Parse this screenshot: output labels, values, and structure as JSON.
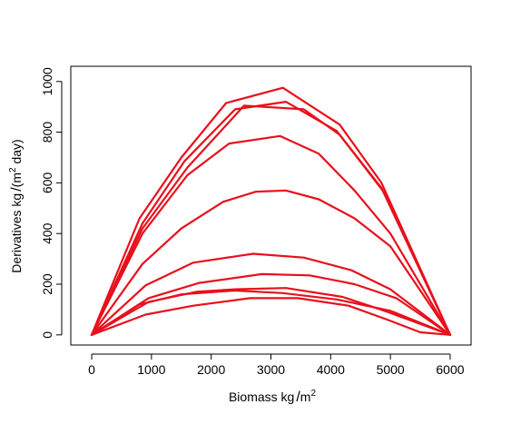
{
  "chart_data": {
    "type": "line",
    "title": "",
    "xlabel": "Biomass kg/m²",
    "xlabel_parts": {
      "main": "Biomass kg",
      "slash": "/",
      "base": "m",
      "sup": "2"
    },
    "ylabel": "Derivatives kg/(m² day)",
    "ylabel_parts": {
      "main": "Derivatives kg",
      "slash": "/",
      "open": "(",
      "base": "m",
      "sup": "2",
      "rest": " day)"
    },
    "xlim": [
      -350,
      6350
    ],
    "ylim": [
      -40,
      1060
    ],
    "xticks": [
      0,
      1000,
      2000,
      3000,
      4000,
      5000,
      6000
    ],
    "yticks": [
      0,
      200,
      400,
      600,
      800,
      1000
    ],
    "xtick_labels": [
      "0",
      "1000",
      "2000",
      "3000",
      "4000",
      "5000",
      "6000"
    ],
    "ytick_labels": [
      "0",
      "200",
      "400",
      "600",
      "800",
      "1000"
    ],
    "grid": false,
    "line_color": "#e8101c",
    "series": [
      {
        "x": [
          0,
          800,
          1500,
          2250,
          3200,
          4150,
          4850,
          6000
        ],
        "y": [
          0,
          460,
          700,
          915,
          975,
          830,
          600,
          0
        ]
      },
      {
        "x": [
          0,
          850,
          1550,
          2400,
          3250,
          4100,
          4850,
          6000
        ],
        "y": [
          0,
          440,
          685,
          890,
          920,
          805,
          580,
          0
        ]
      },
      {
        "x": [
          0,
          850,
          1600,
          2550,
          3550,
          4150,
          4900,
          6000
        ],
        "y": [
          0,
          420,
          660,
          905,
          890,
          790,
          560,
          0
        ]
      },
      {
        "x": [
          0,
          850,
          1600,
          2300,
          3150,
          3800,
          4400,
          5000,
          6000
        ],
        "y": [
          0,
          400,
          630,
          755,
          785,
          715,
          570,
          400,
          0
        ]
      },
      {
        "x": [
          0,
          850,
          1500,
          2200,
          2750,
          3250,
          3800,
          4400,
          5000,
          6000
        ],
        "y": [
          0,
          280,
          420,
          525,
          565,
          570,
          535,
          460,
          350,
          0
        ]
      },
      {
        "x": [
          0,
          900,
          1700,
          2700,
          3550,
          4350,
          5000,
          6000
        ],
        "y": [
          0,
          195,
          285,
          320,
          305,
          255,
          180,
          0
        ]
      },
      {
        "x": [
          0,
          950,
          1800,
          2850,
          3650,
          4400,
          5100,
          6000
        ],
        "y": [
          0,
          145,
          205,
          240,
          235,
          200,
          145,
          0
        ]
      },
      {
        "x": [
          0,
          950,
          1750,
          2400,
          3250,
          4200,
          4900,
          6000
        ],
        "y": [
          0,
          130,
          170,
          180,
          185,
          150,
          95,
          0
        ]
      },
      {
        "x": [
          0,
          800,
          1500,
          2400,
          3200,
          4100,
          5000,
          6000
        ],
        "y": [
          0,
          120,
          160,
          175,
          165,
          140,
          95,
          0
        ]
      },
      {
        "x": [
          0,
          900,
          1700,
          2650,
          3450,
          4300,
          4950,
          5500,
          6000
        ],
        "y": [
          0,
          80,
          115,
          145,
          145,
          115,
          60,
          10,
          0
        ]
      }
    ]
  }
}
